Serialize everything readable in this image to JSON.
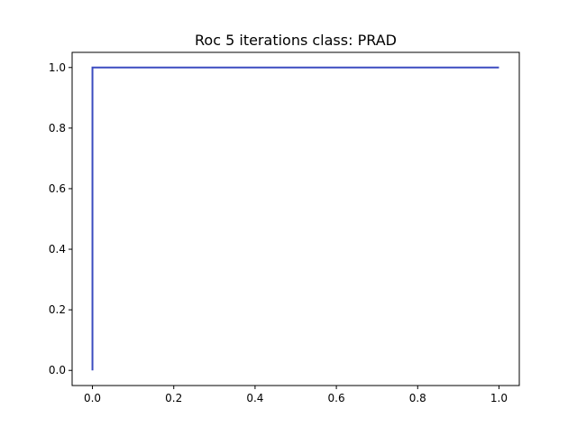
{
  "chart_data": {
    "type": "line",
    "title": "Roc 5 iterations class: PRAD",
    "xlabel": "",
    "ylabel": "",
    "xlim": [
      -0.05,
      1.05
    ],
    "ylim": [
      -0.05,
      1.05
    ],
    "xticks": [
      0.0,
      0.2,
      0.4,
      0.6,
      0.8,
      1.0
    ],
    "xtick_labels": [
      "0.0",
      "0.2",
      "0.4",
      "0.6",
      "0.8",
      "1.0"
    ],
    "yticks": [
      0.0,
      0.2,
      0.4,
      0.6,
      0.8,
      1.0
    ],
    "ytick_labels": [
      "0.0",
      "0.2",
      "0.4",
      "0.6",
      "0.8",
      "1.0"
    ],
    "grid": false,
    "legend": "none",
    "series": [
      {
        "color": "#3b4cc0",
        "x": [
          0.0,
          0.0,
          1.0
        ],
        "y": [
          0.0,
          1.0,
          1.0
        ]
      }
    ]
  }
}
